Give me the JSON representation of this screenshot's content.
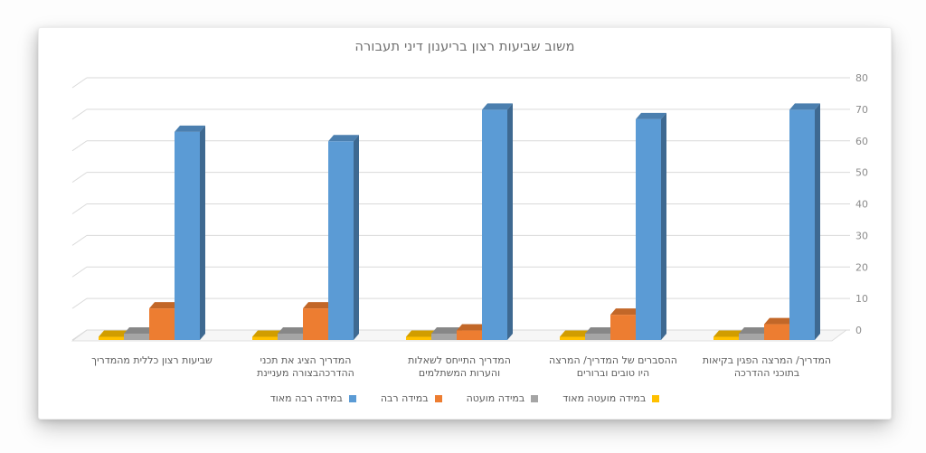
{
  "chart_data": {
    "type": "bar",
    "subtype": "3d-column",
    "title": "משוב שביעות רצון בריענון דיני תעבורה",
    "direction": "rtl",
    "axis_side": "right",
    "legend_position": "bottom",
    "grid": true,
    "ylim": [
      0,
      80
    ],
    "yticks": [
      0,
      10,
      20,
      30,
      40,
      50,
      60,
      70,
      80
    ],
    "categories": [
      "שביעות רצון כללית מהמדריך",
      "המדריך הציג את תכני ההדרכהבצורה מעניינת",
      "המדריך התייחס לשאלות והערות המשתלמים",
      "ההסברים של המדריך/ המרצה היו טובים וברורים",
      "המדריך/ המרצה הפגין בקיאות בתוכני ההדרכה"
    ],
    "category_lines": [
      [
        "שביעות רצון כללית מהמדריך"
      ],
      [
        "המדריך הציג את תכני",
        "ההדרכהבצורה מעניינת"
      ],
      [
        "המדריך התייחס לשאלות",
        "והערות המשתלמים"
      ],
      [
        "ההסברים של המדריך/ המרצה",
        "היו טובים וברורים"
      ],
      [
        "המדריך/ המרצה הפגין בקיאות",
        "בתוכני ההדרכה"
      ]
    ],
    "series": [
      {
        "name": "במידה רבה מאוד",
        "color": "#5b9bd5",
        "values": [
          66,
          63,
          73,
          70,
          73
        ]
      },
      {
        "name": "במידה רבה",
        "color": "#ed7d31",
        "values": [
          10,
          10,
          3,
          8,
          5
        ]
      },
      {
        "name": "במידה מועטה",
        "color": "#a5a5a5",
        "values": [
          2,
          2,
          2,
          2,
          2
        ]
      },
      {
        "name": "במידה מועטה מאוד",
        "color": "#ffc000",
        "values": [
          1,
          1,
          1,
          1,
          1
        ]
      }
    ],
    "colors": {
      "gridline": "#d9d9d9",
      "floor_fill": "#f6f6f6",
      "tick_label": "#8c8c8c",
      "title_text": "#6d6d6d",
      "category_text": "#5c5c5c",
      "legend_text": "#5c5c5c"
    }
  }
}
